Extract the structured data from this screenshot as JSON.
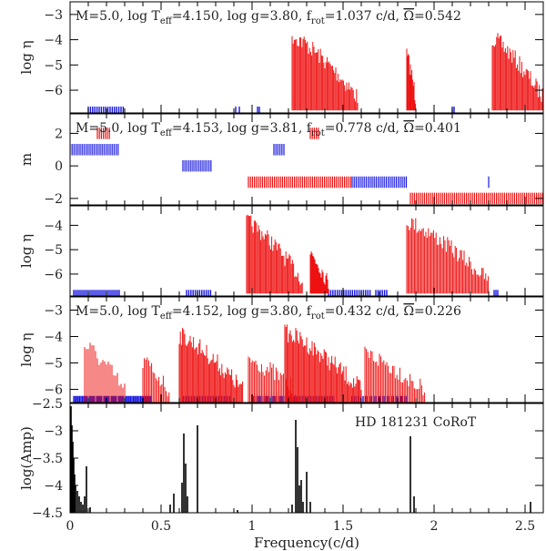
{
  "chart_data": [
    {
      "type": "spectrum",
      "panel": "top",
      "title_parts": {
        "m": "M=5.0,",
        "teff": "log T",
        "teff_sub": "eff",
        "teff_val": "=4.150,",
        "logg": "log g=3.80,",
        "frot": "f",
        "frot_sub": "rot",
        "frot_val": "=1.037 c/d,",
        "omega": "Ω",
        "omega_val": "=0.542"
      },
      "ylabel": "log η",
      "ylim": [
        -6.9,
        -2.5
      ],
      "yticks": [
        -3,
        -4,
        -5,
        -6
      ],
      "ytick_labels": [
        "−3",
        "−4",
        "−5",
        "−6"
      ],
      "blue_groups": [
        {
          "x": [
            0.1,
            0.3
          ],
          "ytop": [
            -6.4,
            -4.7
          ],
          "step": 0.012
        },
        {
          "x": [
            0.91,
            0.93
          ],
          "ytop": [
            -6.0,
            -6.0
          ],
          "step": 0.02
        },
        {
          "x": [
            1.03,
            1.04
          ],
          "ytop": [
            -4.9,
            -6.0
          ],
          "step": 0.01
        },
        {
          "x": [
            2.1,
            2.11
          ],
          "ytop": [
            -6.0,
            -6.1
          ],
          "step": 0.01
        }
      ],
      "red_envelopes": [
        {
          "x": [
            1.22,
            1.58
          ],
          "ymax": -3.5,
          "ymin": -6.8,
          "step": 0.006
        },
        {
          "x": [
            1.85,
            1.9
          ],
          "ymax": -4.3,
          "ymin": -6.8,
          "step": 0.004
        },
        {
          "x": [
            2.32,
            2.6
          ],
          "ymax": -3.6,
          "ymin": -6.8,
          "step": 0.006
        }
      ]
    },
    {
      "type": "mode-degree",
      "panel": "m",
      "title_parts": {
        "m": "M=5.0,",
        "teff": "log T",
        "teff_sub": "eff",
        "teff_val": "=4.153,",
        "logg": "log g=3.81,",
        "frot": "f",
        "frot_sub": "rot",
        "frot_val": "=0.778 c/d,",
        "omega": "Ω",
        "omega_val": "=0.401"
      },
      "ylabel": "m",
      "ylim": [
        -2.4,
        3.2
      ],
      "yticks": [
        2,
        0,
        -2
      ],
      "ytick_labels": [
        "2",
        "0",
        "−2"
      ],
      "blue_rows": [
        {
          "m": 1,
          "x": [
            0.0,
            0.27
          ]
        },
        {
          "m": 0,
          "x": [
            0.62,
            0.78
          ]
        },
        {
          "m": 1,
          "x": [
            1.12,
            1.18
          ]
        },
        {
          "m": -1,
          "x": [
            1.55,
            1.85
          ]
        },
        {
          "m": -1,
          "x": [
            2.3,
            2.31
          ]
        }
      ],
      "red_rows": [
        {
          "m": 2,
          "x": [
            0.15,
            0.22
          ]
        },
        {
          "m": 2,
          "x": [
            1.32,
            1.37
          ]
        },
        {
          "m": -1,
          "x": [
            0.98,
            1.55
          ]
        },
        {
          "m": -2,
          "x": [
            1.87,
            2.6
          ]
        }
      ]
    },
    {
      "type": "spectrum",
      "panel": "third",
      "ylabel": "log η",
      "ylim": [
        -6.9,
        -3.2
      ],
      "yticks": [
        -4,
        -5,
        -6
      ],
      "ytick_labels": [
        "−4",
        "−5",
        "−6"
      ],
      "blue_groups": [
        {
          "x": [
            0.02,
            0.27
          ],
          "ytop": [
            -6.5,
            -4.2
          ],
          "step": 0.01
        },
        {
          "x": [
            0.64,
            0.78
          ],
          "ytop": [
            -4.4,
            -6.0
          ],
          "step": 0.012
        },
        {
          "x": [
            1.42,
            1.65
          ],
          "ytop": [
            -4.2,
            -6.0
          ],
          "step": 0.012
        },
        {
          "x": [
            1.68,
            1.75
          ],
          "ytop": [
            -5.4,
            -6.0
          ],
          "step": 0.012
        },
        {
          "x": [
            2.33,
            2.35
          ],
          "ytop": [
            -6.2,
            -6.2
          ],
          "step": 0.01
        }
      ],
      "red_envelopes": [
        {
          "x": [
            0.97,
            1.28
          ],
          "ymax": -3.5,
          "ymin": -6.8,
          "step": 0.006
        },
        {
          "x": [
            1.32,
            1.42
          ],
          "ymax": -4.8,
          "ymin": -6.8,
          "step": 0.005
        },
        {
          "x": [
            1.85,
            2.3
          ],
          "ymax": -3.5,
          "ymin": -6.8,
          "step": 0.007
        }
      ]
    },
    {
      "type": "spectrum",
      "panel": "fourth",
      "title_parts": {
        "m": "M=5.0,",
        "teff": "log T",
        "teff_sub": "eff",
        "teff_val": "=4.152,",
        "logg": "log g=3.80,",
        "frot": "f",
        "frot_sub": "rot",
        "frot_val": "=0.432 c/d,",
        "omega": "Ω",
        "omega_val": "=0.226"
      },
      "ylabel": "log η",
      "ylim": [
        -6.5,
        -2.5
      ],
      "yticks": [
        -3,
        -4,
        -5,
        -6
      ],
      "ytick_labels": [
        "−3",
        "−4",
        "−5",
        "−6"
      ],
      "blue_groups": [
        {
          "x": [
            0.02,
            0.45
          ],
          "ytop": [
            -4.3,
            -5.8
          ],
          "step": 0.008
        },
        {
          "x": [
            0.62,
            0.88
          ],
          "ytop": [
            -4.5,
            -6.0
          ],
          "step": 0.01
        },
        {
          "x": [
            1.0,
            1.45
          ],
          "ytop": [
            -4.3,
            -6.0
          ],
          "step": 0.01
        },
        {
          "x": [
            1.55,
            1.85
          ],
          "ytop": [
            -5.0,
            -6.0
          ],
          "step": 0.012
        }
      ],
      "red_envelopes": [
        {
          "x": [
            0.08,
            0.3
          ],
          "ymax": -4.0,
          "ymin": -6.5,
          "step": 0.01
        },
        {
          "x": [
            0.4,
            0.55
          ],
          "ymax": -4.6,
          "ymin": -6.5,
          "step": 0.008
        },
        {
          "x": [
            0.6,
            0.95
          ],
          "ymax": -3.6,
          "ymin": -6.5,
          "step": 0.006
        },
        {
          "x": [
            0.98,
            1.25
          ],
          "ymax": -4.5,
          "ymin": -6.5,
          "step": 0.008
        },
        {
          "x": [
            1.18,
            1.6
          ],
          "ymax": -3.5,
          "ymin": -6.5,
          "step": 0.006
        },
        {
          "x": [
            1.62,
            1.95
          ],
          "ymax": -4.3,
          "ymin": -6.5,
          "step": 0.008
        }
      ]
    },
    {
      "type": "bar",
      "panel": "bottom",
      "ylabel": "log(Amp)",
      "xlabel": "Frequency(c/d)",
      "annotation": "HD 181231    CoRoT",
      "xlim": [
        0,
        2.6
      ],
      "ylim": [
        -4.5,
        -2.5
      ],
      "yticks": [
        -2.5,
        -3,
        -3.5,
        -4,
        -4.5
      ],
      "ytick_labels": [
        "−2.5",
        "−3",
        "−3.5",
        "−4",
        "−4.5"
      ],
      "xticks": [
        0,
        0.5,
        1,
        1.5,
        2,
        2.5
      ],
      "xtick_labels": [
        "0",
        "0.5",
        "1",
        "1.5",
        "2",
        "2.5"
      ],
      "lines": [
        {
          "x": 0.005,
          "y": -2.55
        },
        {
          "x": 0.01,
          "y": -2.9
        },
        {
          "x": 0.015,
          "y": -3.2
        },
        {
          "x": 0.02,
          "y": -3.5
        },
        {
          "x": 0.025,
          "y": -3.8
        },
        {
          "x": 0.03,
          "y": -4.0
        },
        {
          "x": 0.04,
          "y": -4.1
        },
        {
          "x": 0.05,
          "y": -4.2
        },
        {
          "x": 0.06,
          "y": -4.3
        },
        {
          "x": 0.07,
          "y": -4.35
        },
        {
          "x": 0.08,
          "y": -4.2
        },
        {
          "x": 0.09,
          "y": -3.65
        },
        {
          "x": 0.11,
          "y": -4.4
        },
        {
          "x": 0.55,
          "y": -4.35
        },
        {
          "x": 0.57,
          "y": -4.15
        },
        {
          "x": 0.615,
          "y": -3.95
        },
        {
          "x": 0.625,
          "y": -3.05
        },
        {
          "x": 0.635,
          "y": -3.6
        },
        {
          "x": 0.645,
          "y": -4.2
        },
        {
          "x": 0.7,
          "y": -2.9
        },
        {
          "x": 0.92,
          "y": -4.45
        },
        {
          "x": 1.22,
          "y": -4.35
        },
        {
          "x": 1.24,
          "y": -2.8
        },
        {
          "x": 1.25,
          "y": -3.3
        },
        {
          "x": 1.26,
          "y": -4.0
        },
        {
          "x": 1.27,
          "y": -3.9
        },
        {
          "x": 1.28,
          "y": -4.3
        },
        {
          "x": 1.3,
          "y": -3.75
        },
        {
          "x": 1.32,
          "y": -4.3
        },
        {
          "x": 1.87,
          "y": -3.1
        },
        {
          "x": 1.89,
          "y": -4.2
        },
        {
          "x": 2.53,
          "y": -4.3
        }
      ]
    }
  ],
  "colors": {
    "blue": "#1515e0",
    "red": "#ee1111",
    "black": "#000000"
  }
}
